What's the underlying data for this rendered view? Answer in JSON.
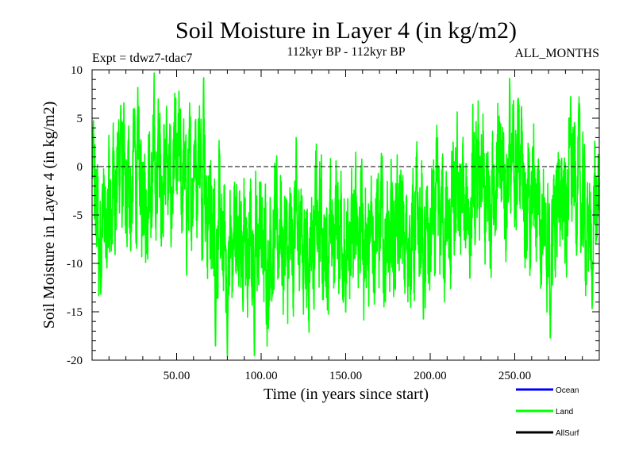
{
  "chart_data": {
    "type": "line",
    "title": "Soil Moisture in Layer 4 (in kg/m2)",
    "subtitle_left": "Expt = tdwz7-tdac7",
    "subtitle_center": "112kyr BP - 112kyr BP",
    "subtitle_right": "ALL_MONTHS",
    "xlabel": "Time (in years since start)",
    "ylabel": "Soil Moisture in Layer 4 (in kg/m2)",
    "xlim": [
      0,
      300
    ],
    "ylim": [
      -20,
      10
    ],
    "x_ticks": [
      50,
      100,
      150,
      200,
      250
    ],
    "x_tick_labels": [
      "50.00",
      "100.00",
      "150.00",
      "200.00",
      "250.00"
    ],
    "y_ticks": [
      -20,
      -15,
      -10,
      -5,
      0,
      5,
      10
    ],
    "y_tick_labels": [
      "-20",
      "-15",
      "-10",
      "-5",
      "0",
      "5",
      "10"
    ],
    "reference_line": 0,
    "legend": [
      {
        "name": "Ocean",
        "color": "#0000ff"
      },
      {
        "name": "Land",
        "color": "#00ff00"
      },
      {
        "name": "AllSurf",
        "color": "#000000"
      }
    ],
    "series": [
      {
        "name": "Land",
        "color": "#00ff00",
        "sampling": "monthly, 300 years",
        "mean": -4,
        "approx_min": -20,
        "approx_max": 9.7,
        "key_points": [
          {
            "x": 0.5,
            "y": 4
          },
          {
            "x": 4,
            "y": -14
          },
          {
            "x": 17,
            "y": 7
          },
          {
            "x": 25,
            "y": 6
          },
          {
            "x": 44,
            "y": 7
          },
          {
            "x": 66,
            "y": 9.7
          },
          {
            "x": 73,
            "y": -19
          },
          {
            "x": 80,
            "y": -20
          },
          {
            "x": 96,
            "y": -20
          },
          {
            "x": 150,
            "y": -16
          },
          {
            "x": 196,
            "y": -16
          },
          {
            "x": 247,
            "y": 9.7
          },
          {
            "x": 254,
            "y": 7
          },
          {
            "x": 271,
            "y": -18
          },
          {
            "x": 283,
            "y": 8
          },
          {
            "x": 296,
            "y": -14
          },
          {
            "x": 299,
            "y": -5
          }
        ]
      }
    ]
  }
}
